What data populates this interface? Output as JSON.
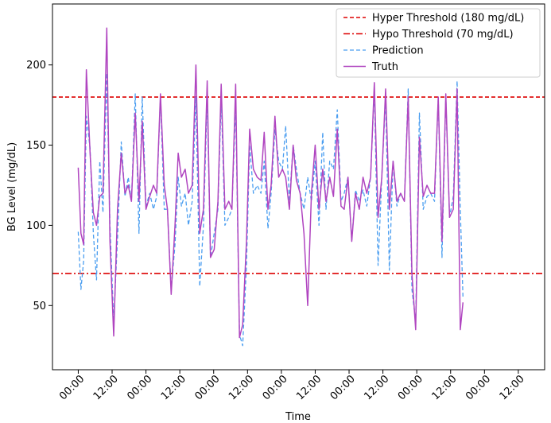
{
  "chart_data": {
    "type": "line",
    "xlabel": "Time",
    "ylabel": "BG Level (mg/dL)",
    "ylim": [
      10,
      238
    ],
    "xlim": [
      -4.8,
      86.8
    ],
    "yticks": [
      50,
      100,
      150,
      200
    ],
    "xticks": [
      0,
      6.3,
      12.6,
      18.9,
      25.2,
      31.5,
      37.8,
      44.1,
      50.4,
      56.7,
      63.0,
      69.3,
      75.6,
      81.9
    ],
    "xtick_labels": [
      "00:00",
      "12:00",
      "00:00",
      "12:00",
      "00:00",
      "12:00",
      "00:00",
      "12:00",
      "00:00",
      "12:00",
      "00:00",
      "12:00",
      "00:00",
      "12:00"
    ],
    "grid": false,
    "legend_position": "top-right",
    "thresholds": [
      {
        "name": "Hyper Threshold (180 mg/dL)",
        "value": 180,
        "color": "#dd0000",
        "style": "dashed"
      },
      {
        "name": "Hypo Threshold (70 mg/dL)",
        "value": 70,
        "color": "#dd0000",
        "style": "dashdot"
      }
    ],
    "series": [
      {
        "name": "Prediction",
        "color": "#4b9ef0",
        "style": "dashed",
        "points": [
          [
            0,
            96
          ],
          [
            0.5,
            60
          ],
          [
            1,
            78
          ],
          [
            1.5,
            168
          ],
          [
            2.2,
            148
          ],
          [
            2.8,
            95
          ],
          [
            3.4,
            66
          ],
          [
            4,
            140
          ],
          [
            4.6,
            108
          ],
          [
            5.3,
            195
          ],
          [
            5.9,
            100
          ],
          [
            6.6,
            40
          ],
          [
            7.3,
            92
          ],
          [
            8,
            152
          ],
          [
            8.7,
            118
          ],
          [
            9.3,
            130
          ],
          [
            9.9,
            115
          ],
          [
            10.6,
            182
          ],
          [
            11.3,
            95
          ],
          [
            11.9,
            180
          ],
          [
            12.6,
            112
          ],
          [
            13.3,
            120
          ],
          [
            14,
            110
          ],
          [
            14.6,
            118
          ],
          [
            15.3,
            180
          ],
          [
            16,
            110
          ],
          [
            16.6,
            110
          ],
          [
            17.3,
            60
          ],
          [
            18,
            88
          ],
          [
            18.6,
            130
          ],
          [
            19.2,
            112
          ],
          [
            19.9,
            120
          ],
          [
            20.5,
            100
          ],
          [
            21.2,
            115
          ],
          [
            21.9,
            180
          ],
          [
            22.6,
            62
          ],
          [
            23.3,
            100
          ],
          [
            24,
            180
          ],
          [
            24.6,
            80
          ],
          [
            25.3,
            95
          ],
          [
            26,
            110
          ],
          [
            26.6,
            180
          ],
          [
            27.3,
            100
          ],
          [
            28,
            105
          ],
          [
            28.6,
            110
          ],
          [
            29.3,
            175
          ],
          [
            30,
            32
          ],
          [
            30.6,
            25
          ],
          [
            31.3,
            75
          ],
          [
            31.9,
            150
          ],
          [
            32.6,
            120
          ],
          [
            33.3,
            125
          ],
          [
            34,
            120
          ],
          [
            34.6,
            140
          ],
          [
            35.3,
            98
          ],
          [
            35.9,
            120
          ],
          [
            36.6,
            160
          ],
          [
            37.3,
            140
          ],
          [
            38,
            135
          ],
          [
            38.6,
            162
          ],
          [
            39.3,
            115
          ],
          [
            40,
            150
          ],
          [
            40.6,
            135
          ],
          [
            41.3,
            120
          ],
          [
            42,
            110
          ],
          [
            42.7,
            130
          ],
          [
            43.4,
            115
          ],
          [
            44.1,
            140
          ],
          [
            44.8,
            100
          ],
          [
            45.5,
            158
          ],
          [
            46.1,
            110
          ],
          [
            46.8,
            140
          ],
          [
            47.5,
            135
          ],
          [
            48.2,
            172
          ],
          [
            48.9,
            115
          ],
          [
            49.5,
            120
          ],
          [
            50.2,
            130
          ],
          [
            50.9,
            90
          ],
          [
            51.6,
            122
          ],
          [
            52.3,
            115
          ],
          [
            53,
            122
          ],
          [
            53.7,
            112
          ],
          [
            54.4,
            130
          ],
          [
            55.1,
            185
          ],
          [
            55.8,
            75
          ],
          [
            56.5,
            130
          ],
          [
            57.2,
            180
          ],
          [
            57.9,
            72
          ],
          [
            58.6,
            140
          ],
          [
            59.3,
            112
          ],
          [
            60,
            120
          ],
          [
            60.7,
            115
          ],
          [
            61.4,
            185
          ],
          [
            62.1,
            60
          ],
          [
            62.8,
            40
          ],
          [
            63.5,
            170
          ],
          [
            64.2,
            110
          ],
          [
            64.9,
            118
          ],
          [
            65.6,
            120
          ],
          [
            66.3,
            115
          ],
          [
            67,
            180
          ],
          [
            67.7,
            80
          ],
          [
            68.4,
            180
          ],
          [
            69.1,
            105
          ],
          [
            69.8,
            118
          ],
          [
            70.5,
            190
          ],
          [
            71.1,
            110
          ],
          [
            71.6,
            55
          ]
        ]
      },
      {
        "name": "Truth",
        "color": "#b045c0",
        "style": "solid",
        "points": [
          [
            0,
            136
          ],
          [
            0.5,
            95
          ],
          [
            1,
            88
          ],
          [
            1.5,
            197
          ],
          [
            2.2,
            145
          ],
          [
            2.8,
            108
          ],
          [
            3.4,
            100
          ],
          [
            4,
            118
          ],
          [
            4.6,
            120
          ],
          [
            5.3,
            223
          ],
          [
            5.9,
            90
          ],
          [
            6.6,
            31
          ],
          [
            7.3,
            110
          ],
          [
            8,
            145
          ],
          [
            8.7,
            120
          ],
          [
            9.3,
            125
          ],
          [
            9.9,
            115
          ],
          [
            10.6,
            170
          ],
          [
            11.3,
            115
          ],
          [
            11.9,
            165
          ],
          [
            12.6,
            110
          ],
          [
            13.3,
            118
          ],
          [
            14,
            125
          ],
          [
            14.6,
            120
          ],
          [
            15.3,
            182
          ],
          [
            16,
            125
          ],
          [
            16.6,
            110
          ],
          [
            17.3,
            57
          ],
          [
            18,
            100
          ],
          [
            18.6,
            145
          ],
          [
            19.2,
            130
          ],
          [
            19.9,
            135
          ],
          [
            20.5,
            120
          ],
          [
            21.2,
            125
          ],
          [
            21.9,
            200
          ],
          [
            22.6,
            95
          ],
          [
            23.3,
            110
          ],
          [
            24,
            190
          ],
          [
            24.6,
            80
          ],
          [
            25.3,
            85
          ],
          [
            26,
            115
          ],
          [
            26.6,
            188
          ],
          [
            27.3,
            110
          ],
          [
            28,
            115
          ],
          [
            28.6,
            110
          ],
          [
            29.3,
            188
          ],
          [
            30,
            30
          ],
          [
            30.6,
            38
          ],
          [
            31.3,
            90
          ],
          [
            31.9,
            160
          ],
          [
            32.6,
            135
          ],
          [
            33.3,
            130
          ],
          [
            34,
            128
          ],
          [
            34.6,
            158
          ],
          [
            35.3,
            110
          ],
          [
            35.9,
            125
          ],
          [
            36.6,
            168
          ],
          [
            37.3,
            130
          ],
          [
            38,
            135
          ],
          [
            38.6,
            130
          ],
          [
            39.3,
            110
          ],
          [
            40,
            150
          ],
          [
            40.6,
            128
          ],
          [
            41.3,
            120
          ],
          [
            42,
            95
          ],
          [
            42.7,
            50
          ],
          [
            43.4,
            120
          ],
          [
            44.1,
            150
          ],
          [
            44.8,
            110
          ],
          [
            45.5,
            135
          ],
          [
            46.1,
            115
          ],
          [
            46.8,
            130
          ],
          [
            47.5,
            118
          ],
          [
            48.2,
            160
          ],
          [
            48.9,
            112
          ],
          [
            49.5,
            110
          ],
          [
            50.2,
            130
          ],
          [
            50.9,
            90
          ],
          [
            51.6,
            120
          ],
          [
            52.3,
            110
          ],
          [
            53,
            130
          ],
          [
            53.7,
            120
          ],
          [
            54.4,
            130
          ],
          [
            55.1,
            189
          ],
          [
            55.8,
            105
          ],
          [
            56.5,
            130
          ],
          [
            57.2,
            185
          ],
          [
            57.9,
            110
          ],
          [
            58.6,
            140
          ],
          [
            59.3,
            115
          ],
          [
            60,
            120
          ],
          [
            60.7,
            115
          ],
          [
            61.4,
            180
          ],
          [
            62.1,
            70
          ],
          [
            62.8,
            35
          ],
          [
            63.5,
            155
          ],
          [
            64.2,
            118
          ],
          [
            64.9,
            125
          ],
          [
            65.6,
            120
          ],
          [
            66.3,
            120
          ],
          [
            67,
            180
          ],
          [
            67.7,
            90
          ],
          [
            68.4,
            182
          ],
          [
            69.1,
            105
          ],
          [
            69.8,
            110
          ],
          [
            70.5,
            185
          ],
          [
            71.1,
            35
          ],
          [
            71.6,
            52
          ]
        ]
      }
    ]
  }
}
